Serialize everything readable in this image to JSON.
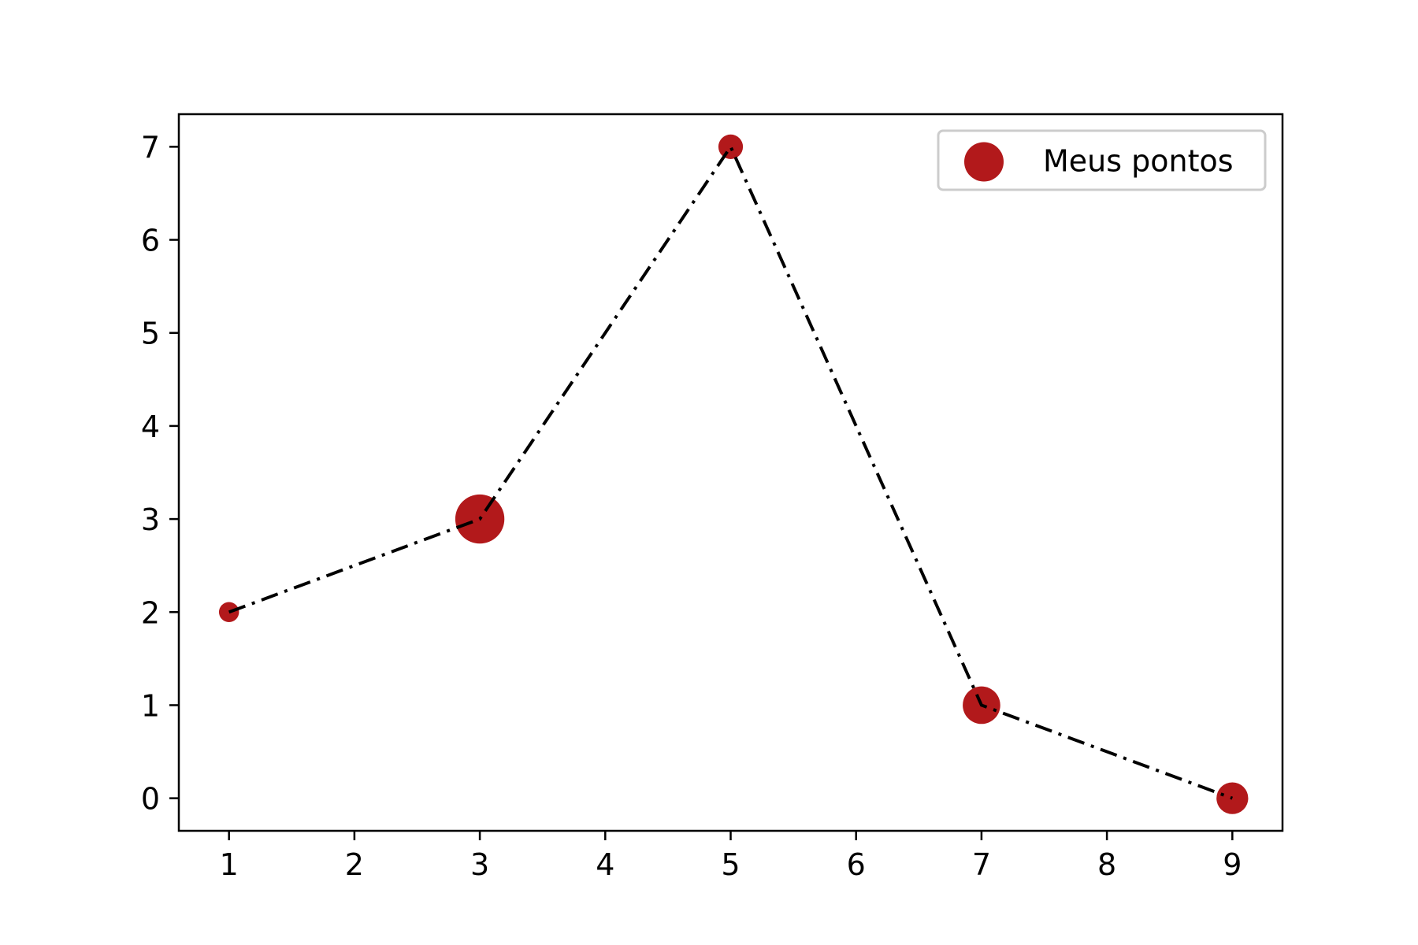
{
  "chart_data": {
    "type": "scatter",
    "title": "",
    "xlabel": "",
    "ylabel": "",
    "xlim": [
      0.6,
      9.4
    ],
    "ylim": [
      -0.35,
      7.35
    ],
    "x_ticks": [
      1,
      2,
      3,
      4,
      5,
      6,
      7,
      8,
      9
    ],
    "y_ticks": [
      0,
      1,
      2,
      3,
      4,
      5,
      6,
      7
    ],
    "x_tick_labels": [
      "1",
      "2",
      "3",
      "4",
      "5",
      "6",
      "7",
      "8",
      "9"
    ],
    "y_tick_labels": [
      "0",
      "1",
      "2",
      "3",
      "4",
      "5",
      "6",
      "7"
    ],
    "grid": false,
    "legend_position": "upper-right",
    "series": [
      {
        "name": "Meus pontos",
        "kind": "scatter",
        "color": "#b2191b",
        "x": [
          1,
          3,
          5,
          7,
          9
        ],
        "y": [
          2,
          3,
          7,
          1,
          0
        ],
        "sizes": [
          2,
          12,
          3,
          7,
          5
        ]
      },
      {
        "kind": "line",
        "linestyle": "dashdot",
        "color": "#000000",
        "x": [
          1,
          3,
          5,
          7,
          9
        ],
        "y": [
          2,
          3,
          7,
          1,
          0
        ]
      }
    ]
  }
}
